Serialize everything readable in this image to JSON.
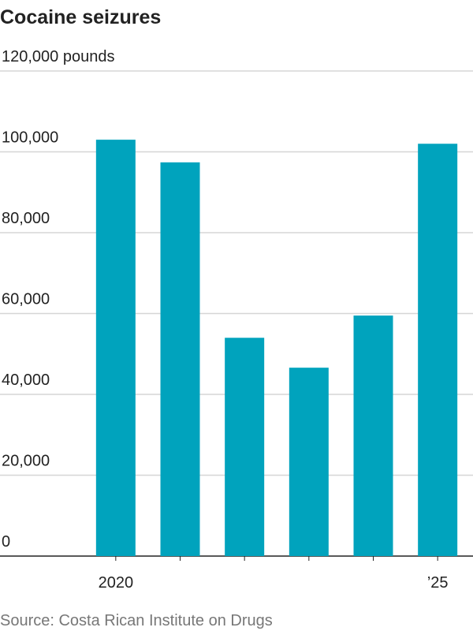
{
  "chart_data": {
    "type": "bar",
    "title": "Cocaine seizures",
    "source": "Source: Costa Rican Institute on Drugs",
    "categories": [
      "2020",
      null,
      null,
      null,
      null,
      "’25"
    ],
    "values": [
      103000,
      97400,
      54000,
      46600,
      59500,
      102000
    ],
    "color": "#00a3bd",
    "ylim": [
      0,
      120000
    ],
    "yticks": [
      0,
      {
        "value": 20000,
        "label": "20,000"
      },
      {
        "value": 40000,
        "label": "40,000"
      },
      {
        "value": 60000,
        "label": "60,000"
      },
      {
        "value": 80000,
        "label": "80,000"
      },
      {
        "value": 100000,
        "label": "100,000"
      },
      {
        "value": 120000,
        "label": "120,000 pounds"
      }
    ],
    "grid": true
  }
}
